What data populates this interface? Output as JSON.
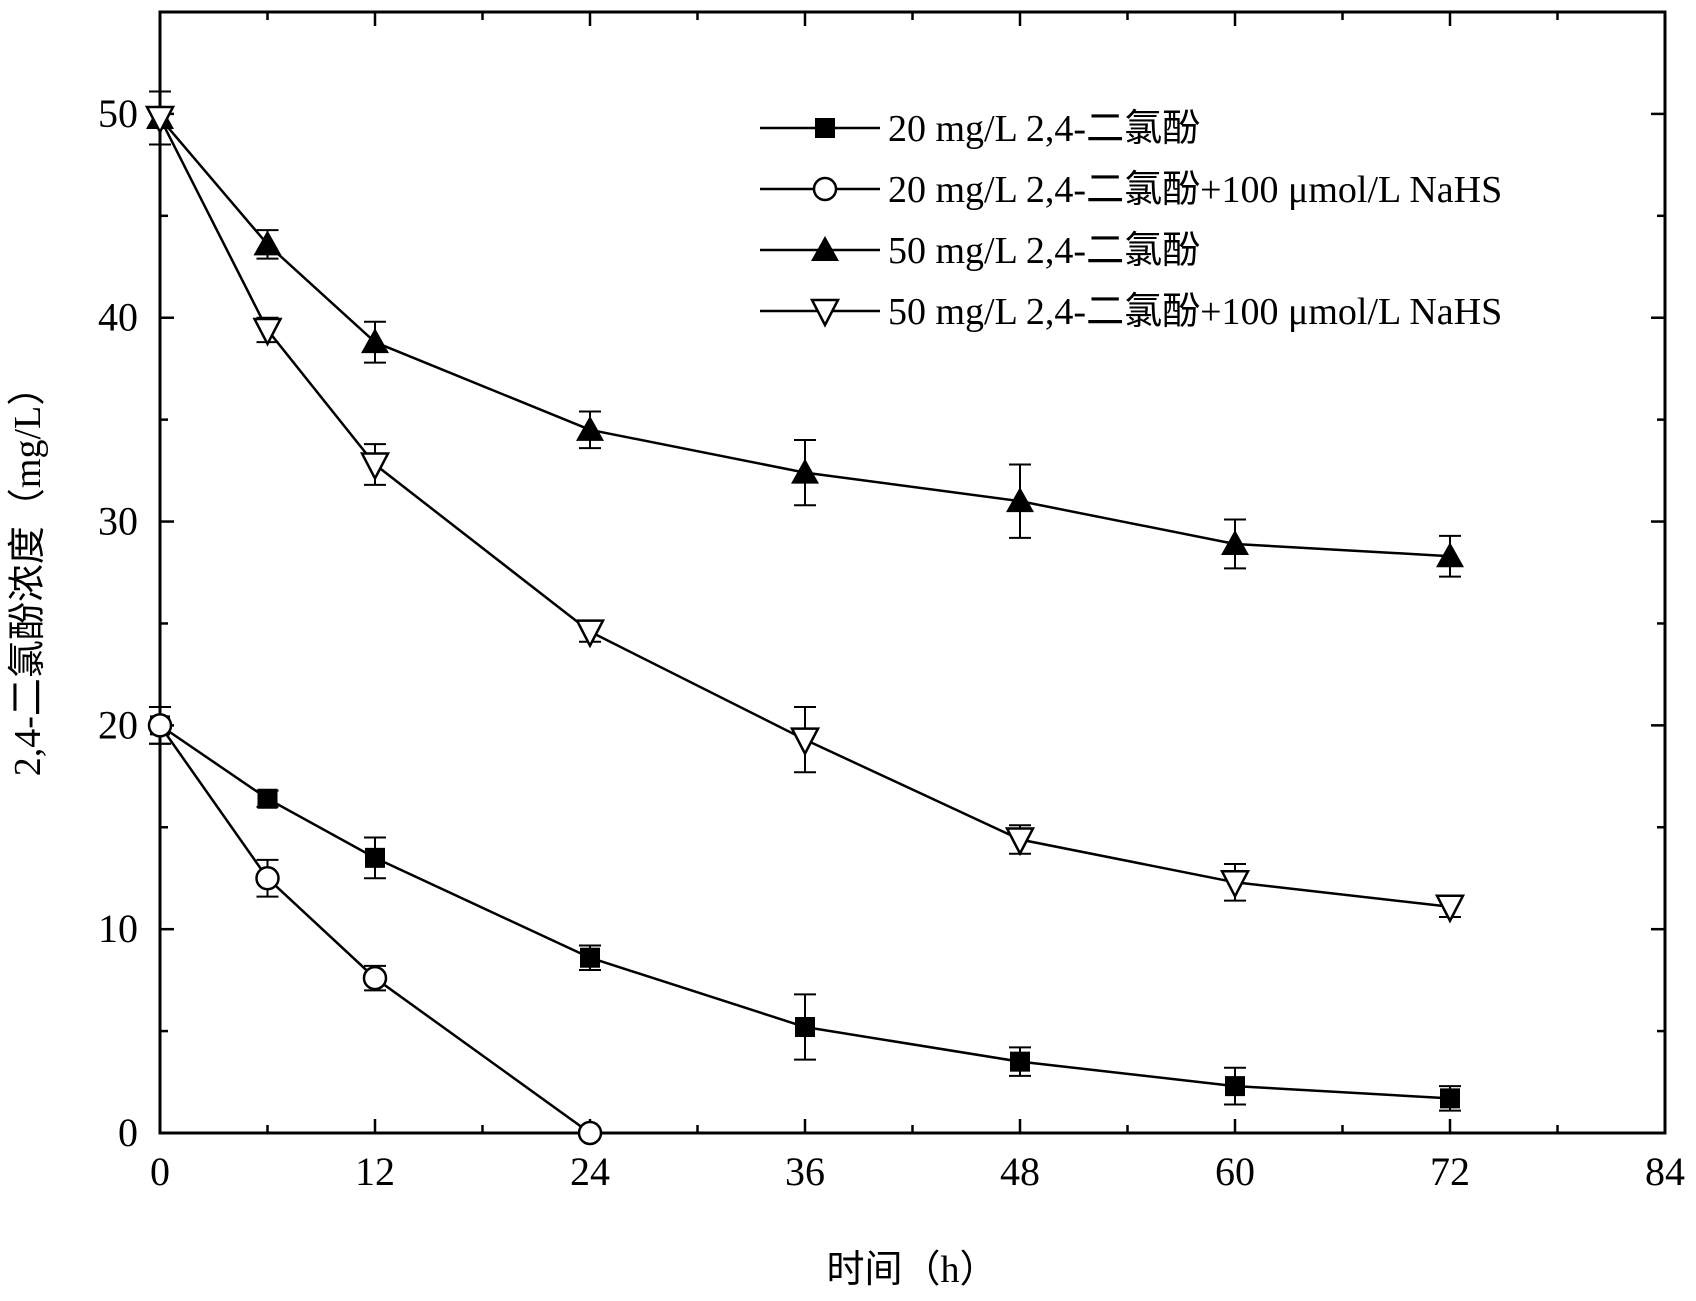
{
  "chart_data": {
    "type": "line",
    "title": "",
    "xlabel": "时间（h）",
    "ylabel": "2,4-二氯酚浓度（mg/L）",
    "xlim": [
      0,
      84
    ],
    "ylim": [
      0,
      55
    ],
    "xticks": [
      0,
      12,
      24,
      36,
      48,
      60,
      72,
      84
    ],
    "yticks": [
      0,
      10,
      20,
      30,
      40,
      50
    ],
    "x_minor_step": 6,
    "y_minor_step": 5,
    "grid": false,
    "legend_position": "top-right",
    "series": [
      {
        "name": "20 mg/L 2,4-二氯酚",
        "marker": "filled-square",
        "x": [
          0,
          6,
          12,
          24,
          36,
          48,
          60,
          72
        ],
        "y": [
          20.0,
          16.4,
          13.5,
          8.6,
          5.2,
          3.5,
          2.3,
          1.7
        ],
        "err": [
          0.9,
          0.4,
          1.0,
          0.6,
          1.6,
          0.7,
          0.9,
          0.6
        ]
      },
      {
        "name": "20 mg/L 2,4-二氯酚+100 μmol/L NaHS",
        "marker": "open-circle",
        "x": [
          0,
          6,
          12,
          24
        ],
        "y": [
          20.0,
          12.5,
          7.6,
          0.0
        ],
        "err": [
          0.9,
          0.9,
          0.6,
          0.0
        ]
      },
      {
        "name": "50 mg/L 2,4-二氯酚",
        "marker": "filled-triangle-up",
        "x": [
          0,
          6,
          12,
          24,
          36,
          48,
          60,
          72
        ],
        "y": [
          49.8,
          43.6,
          38.8,
          34.5,
          32.4,
          31.0,
          28.9,
          28.3
        ],
        "err": [
          1.3,
          0.7,
          1.0,
          0.9,
          1.6,
          1.8,
          1.2,
          1.0
        ]
      },
      {
        "name": "50 mg/L 2,4-二氯酚+100 μmol/L NaHS",
        "marker": "open-triangle-down",
        "x": [
          0,
          6,
          12,
          24,
          36,
          48,
          60,
          72
        ],
        "y": [
          49.8,
          39.4,
          32.8,
          24.6,
          19.3,
          14.4,
          12.3,
          11.1
        ],
        "err": [
          1.3,
          0.6,
          1.0,
          0.5,
          1.6,
          0.7,
          0.9,
          0.5
        ]
      }
    ]
  }
}
